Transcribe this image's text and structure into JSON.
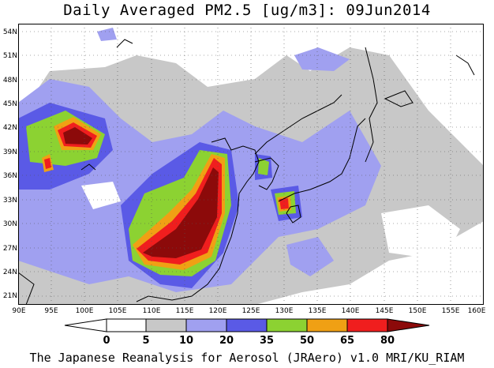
{
  "title": "Daily Averaged PM2.5 [ug/m3]: 09Jun2014",
  "credit": "The Japanese Reanalysis for Aerosol (JRAero) v1.0 MRI/KU_RIAM",
  "map": {
    "lat_labels": [
      "54N",
      "51N",
      "48N",
      "45N",
      "42N",
      "39N",
      "36N",
      "33N",
      "30N",
      "27N",
      "24N",
      "21N"
    ],
    "lon_labels": [
      "90E",
      "95E",
      "100E",
      "105E",
      "110E",
      "115E",
      "120E",
      "125E",
      "130E",
      "135E",
      "140E",
      "145E",
      "150E",
      "155E",
      "160E"
    ],
    "extent": {
      "lon": [
        90,
        160
      ],
      "lat": [
        20,
        55
      ]
    }
  },
  "colorbar": {
    "ticks": [
      "0",
      "5",
      "10",
      "20",
      "35",
      "50",
      "65",
      "80"
    ],
    "colors": [
      "#ffffff",
      "#c8c8c8",
      "#a0a0f0",
      "#5a5ae6",
      "#8cd232",
      "#f0a014",
      "#f01e1e",
      "#8c0a0a"
    ]
  }
}
